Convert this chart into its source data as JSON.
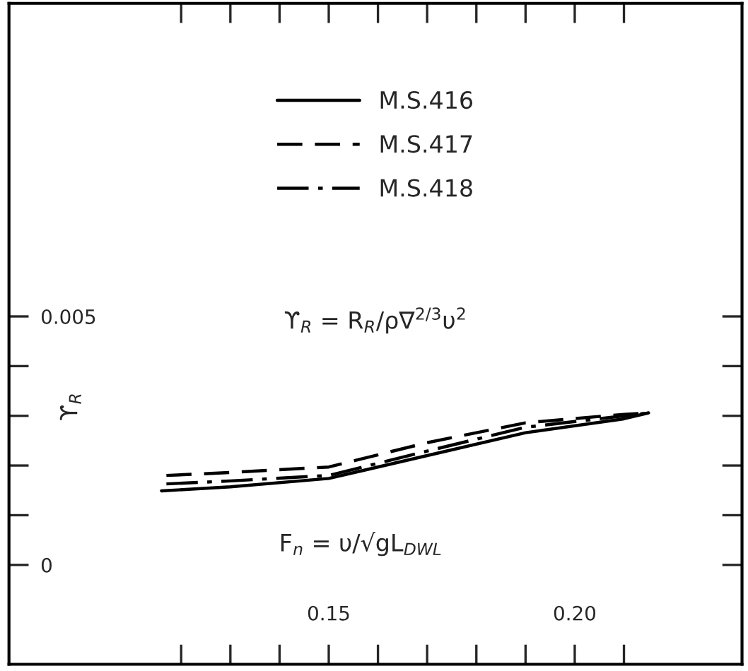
{
  "chart_data": {
    "type": "line",
    "xlabel": "F$_{n}$ = υ/√gL$_{DWL}$",
    "ylabel": "ϒ$_{R}$",
    "annotations": [
      "ϒ$_{R}$ = R$_{R}$/ρ∇$^{2/3}$υ$^{2}$"
    ],
    "series": [
      {
        "name": "M.S.416",
        "color": "#000000",
        "line_style": "solid",
        "x": [
          0.116,
          0.13,
          0.15,
          0.17,
          0.19,
          0.21,
          0.215
        ],
        "values": [
          0.00149,
          0.00157,
          0.00174,
          0.0022,
          0.00266,
          0.00294,
          0.00306
        ]
      },
      {
        "name": "M.S.417",
        "color": "#000000",
        "line_style": "dashed",
        "x": [
          0.117,
          0.13,
          0.15,
          0.17,
          0.19,
          0.21,
          0.215
        ],
        "values": [
          0.0018,
          0.00186,
          0.00197,
          0.00246,
          0.00286,
          0.00303,
          0.00306
        ]
      },
      {
        "name": "M.S.418",
        "color": "#000000",
        "line_style": "dashdot",
        "x": [
          0.117,
          0.13,
          0.15,
          0.17,
          0.19,
          0.21,
          0.215
        ],
        "values": [
          0.00163,
          0.00169,
          0.0018,
          0.00229,
          0.00277,
          0.003,
          0.00306
        ]
      }
    ],
    "xlim": [
      0.085,
      0.234
    ],
    "ylim": [
      -0.002,
      0.0113
    ],
    "xticks": [
      {
        "value": 0.12,
        "label": null
      },
      {
        "value": 0.13,
        "label": null
      },
      {
        "value": 0.14,
        "label": null
      },
      {
        "value": 0.15,
        "label": "0.15"
      },
      {
        "value": 0.16,
        "label": null
      },
      {
        "value": 0.17,
        "label": null
      },
      {
        "value": 0.18,
        "label": null
      },
      {
        "value": 0.19,
        "label": null
      },
      {
        "value": 0.2,
        "label": "0.20"
      },
      {
        "value": 0.21,
        "label": null
      }
    ],
    "yticks": [
      0,
      {
        "value": 0.001,
        "label": null
      },
      {
        "value": 0.002,
        "label": null
      },
      {
        "value": 0.003,
        "label": null
      },
      {
        "value": 0.004,
        "label": null
      },
      0.005
    ],
    "legend": "top",
    "grid": false
  }
}
